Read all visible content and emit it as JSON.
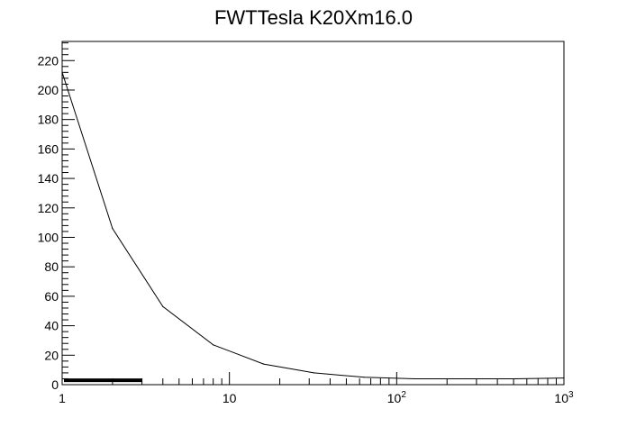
{
  "chart_data": {
    "type": "line",
    "title": "FWTTesla K20Xm16.0",
    "xlabel": "",
    "ylabel": "",
    "x_scale": "log",
    "xlim": [
      1,
      1000
    ],
    "ylim": [
      0,
      233
    ],
    "x_tick_labels": [
      {
        "value": 1,
        "base": "1",
        "exp": ""
      },
      {
        "value": 10,
        "base": "10",
        "exp": ""
      },
      {
        "value": 100,
        "base": "10",
        "exp": "2"
      },
      {
        "value": 1000,
        "base": "10",
        "exp": "3"
      }
    ],
    "y_ticks": [
      0,
      20,
      40,
      60,
      80,
      100,
      120,
      140,
      160,
      180,
      200,
      220
    ],
    "grid": false,
    "series": [
      {
        "x": [
          1,
          2,
          4,
          8,
          16,
          32,
          64,
          128,
          256,
          512,
          1000
        ],
        "values": [
          212,
          106,
          53,
          27,
          14,
          8,
          5,
          4,
          4,
          4,
          4.5
        ]
      }
    ],
    "lower_band": {
      "x_start": 1,
      "x_end": 3,
      "y": 3
    }
  }
}
